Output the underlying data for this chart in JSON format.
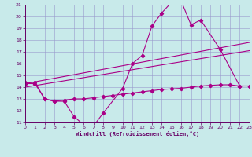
{
  "xlabel": "Windchill (Refroidissement éolien,°C)",
  "ylim": [
    11,
    21
  ],
  "xlim": [
    0,
    23
  ],
  "bg_color": "#c8eaea",
  "line_color": "#aa0088",
  "grid_color": "#9999cc",
  "axis_color": "#660066",
  "main_x": [
    0,
    1,
    2,
    3,
    4,
    5,
    6,
    7,
    8,
    10,
    11,
    12,
    13,
    14,
    15,
    16,
    17,
    18,
    20,
    22,
    23
  ],
  "main_y": [
    14.4,
    14.4,
    13.0,
    12.8,
    12.8,
    11.5,
    10.8,
    10.7,
    11.8,
    13.9,
    16.0,
    16.7,
    19.2,
    20.3,
    21.2,
    21.3,
    19.3,
    19.7,
    17.2,
    14.1,
    14.1
  ],
  "trend1_x": [
    0,
    23
  ],
  "trend1_y": [
    14.3,
    17.8
  ],
  "trend2_x": [
    0,
    23
  ],
  "trend2_y": [
    14.0,
    17.1
  ],
  "bottom_x": [
    0,
    1,
    2,
    3,
    4,
    5,
    6,
    7,
    8,
    9,
    10,
    11,
    12,
    13,
    14,
    15,
    16,
    17,
    18,
    19,
    20,
    21,
    22,
    23
  ],
  "bottom_y": [
    14.3,
    14.3,
    13.0,
    12.8,
    12.9,
    13.0,
    13.0,
    13.1,
    13.2,
    13.3,
    13.4,
    13.5,
    13.6,
    13.7,
    13.8,
    13.85,
    13.9,
    14.0,
    14.1,
    14.15,
    14.2,
    14.2,
    14.1,
    14.1
  ]
}
